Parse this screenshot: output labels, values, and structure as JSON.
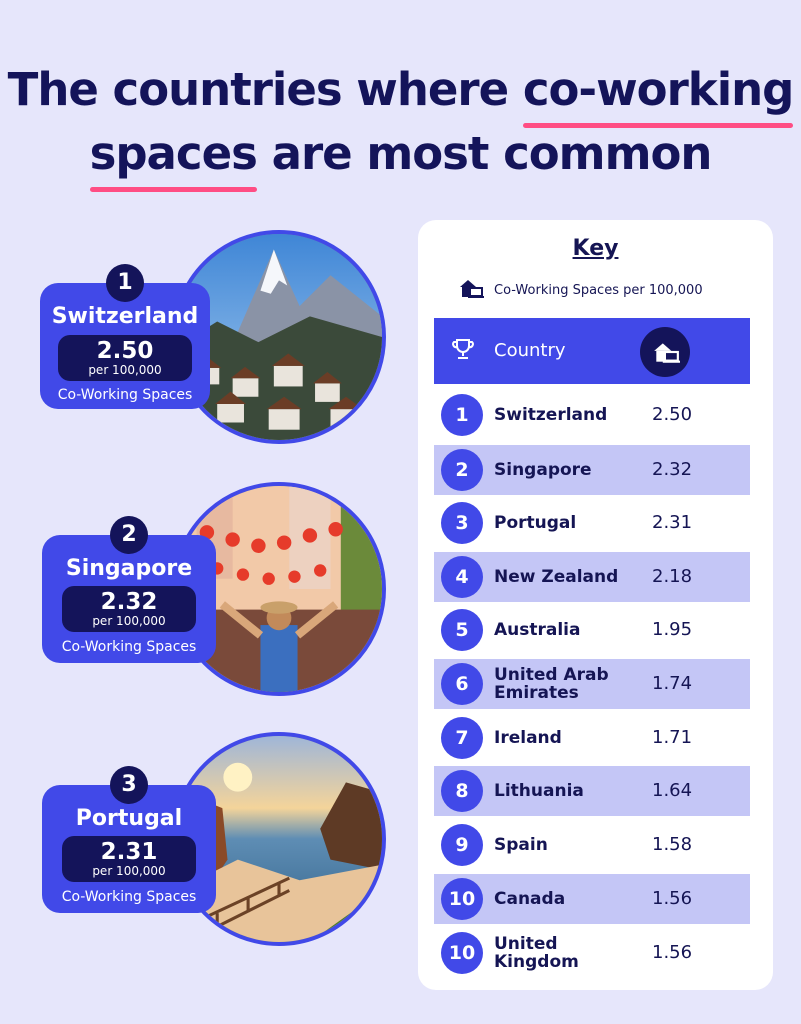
{
  "title": {
    "line1_part1": "The countries where ",
    "line1_part2": "co-working",
    "line2_part1": "spaces",
    "line2_part2": " are most common"
  },
  "colors": {
    "background": "#e6e6fb",
    "accent_blue": "#4149e8",
    "navy": "#14145a",
    "underline_pink": "#ff4d84",
    "shaded_row": "#c4c6f6"
  },
  "features": [
    {
      "rank": "1",
      "country": "Switzerland",
      "value": "2.50",
      "per": "per 100,000",
      "unit": "Co-Working Spaces",
      "image": "mountain-village-photo"
    },
    {
      "rank": "2",
      "country": "Singapore",
      "value": "2.32",
      "per": "per 100,000",
      "unit": "Co-Working Spaces",
      "image": "lantern-street-photo"
    },
    {
      "rank": "3",
      "country": "Portugal",
      "value": "2.31",
      "per": "per 100,000",
      "unit": "Co-Working Spaces",
      "image": "coastal-sunset-photo"
    }
  ],
  "key": {
    "title": "Key",
    "icon": "home-office-icon",
    "label": "Co-Working Spaces per 100,000"
  },
  "table": {
    "header_icon": "trophy-icon",
    "header_country": "Country",
    "header_value_icon": "home-office-icon"
  },
  "chart_data": {
    "type": "table",
    "columns": [
      "Rank",
      "Country",
      "Co-Working Spaces per 100,000"
    ],
    "rows": [
      {
        "rank": "1",
        "country": "Switzerland",
        "value": "2.50"
      },
      {
        "rank": "2",
        "country": "Singapore",
        "value": "2.32"
      },
      {
        "rank": "3",
        "country": "Portugal",
        "value": "2.31"
      },
      {
        "rank": "4",
        "country": "New Zealand",
        "value": "2.18"
      },
      {
        "rank": "5",
        "country": "Australia",
        "value": "1.95"
      },
      {
        "rank": "6",
        "country": "United Arab Emirates",
        "value": "1.74"
      },
      {
        "rank": "7",
        "country": "Ireland",
        "value": "1.71"
      },
      {
        "rank": "8",
        "country": "Lithuania",
        "value": "1.64"
      },
      {
        "rank": "9",
        "country": "Spain",
        "value": "1.58"
      },
      {
        "rank": "10",
        "country": "Canada",
        "value": "1.56"
      },
      {
        "rank": "10",
        "country": "United Kingdom",
        "value": "1.56"
      }
    ]
  }
}
